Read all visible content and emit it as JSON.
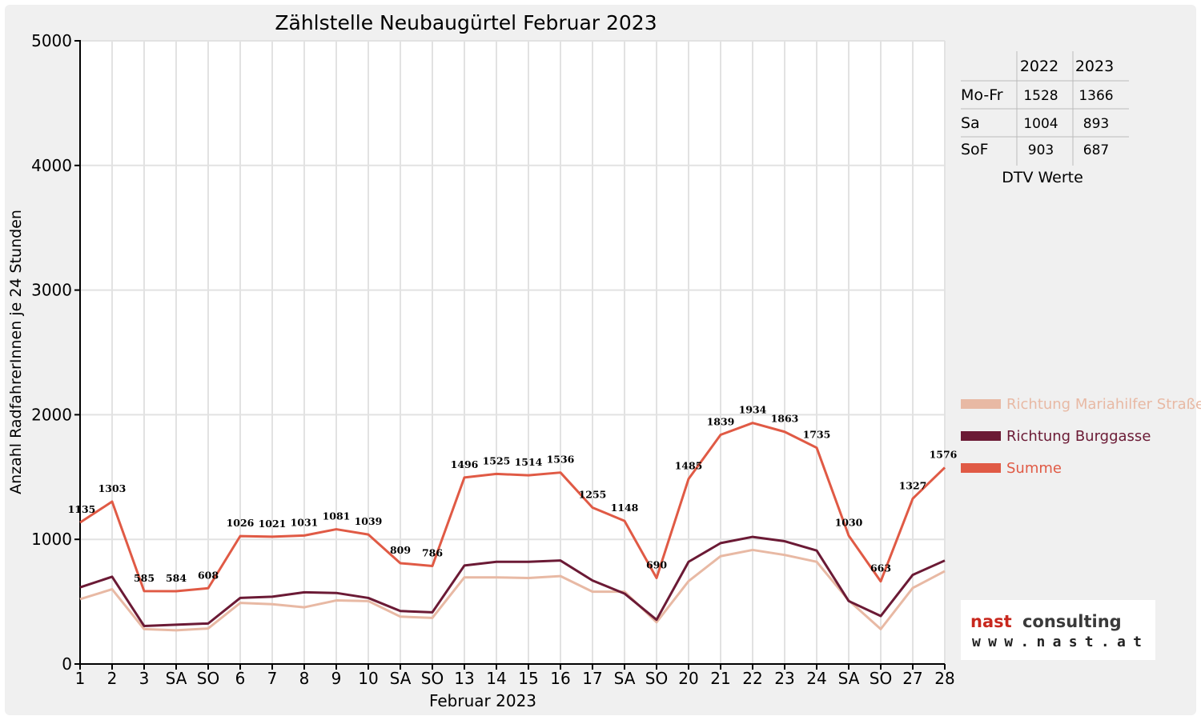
{
  "chart_data": {
    "type": "line",
    "title": "Zählstelle Neubaugürtel Februar 2023",
    "xlabel": "Februar 2023",
    "ylabel": "Anzahl RadfahrerInnen je 24 Stunden",
    "ylim": [
      0,
      5000
    ],
    "yticks": [
      "0",
      "1000",
      "2000",
      "3000",
      "4000",
      "5000"
    ],
    "grid": true,
    "legend_position": "right",
    "categories": [
      "1",
      "2",
      "3",
      "SA",
      "SO",
      "6",
      "7",
      "8",
      "9",
      "10",
      "SA",
      "SO",
      "13",
      "14",
      "15",
      "16",
      "17",
      "SA",
      "SO",
      "20",
      "21",
      "22",
      "23",
      "24",
      "SA",
      "SO",
      "27",
      "28"
    ],
    "weekend_categories": [
      "SO"
    ],
    "series": [
      {
        "name": "Richtung Mariahilfer Straße",
        "color": "#e8b9a4",
        "values": [
          520,
          600,
          280,
          270,
          285,
          490,
          480,
          455,
          510,
          505,
          380,
          370,
          695,
          695,
          690,
          705,
          580,
          580,
          335,
          665,
          865,
          915,
          875,
          820,
          510,
          280,
          610,
          745
        ]
      },
      {
        "name": "Richtung Burggasse",
        "color": "#6b1a35",
        "values": [
          615,
          700,
          305,
          315,
          325,
          530,
          540,
          575,
          570,
          530,
          425,
          415,
          790,
          820,
          820,
          830,
          670,
          565,
          355,
          820,
          970,
          1020,
          985,
          910,
          505,
          385,
          715,
          830
        ]
      },
      {
        "name": "Summe",
        "color": "#e05a45",
        "values": [
          1135,
          1303,
          585,
          584,
          608,
          1026,
          1021,
          1031,
          1081,
          1039,
          809,
          786,
          1496,
          1525,
          1514,
          1536,
          1255,
          1148,
          690,
          1485,
          1839,
          1934,
          1863,
          1735,
          1030,
          663,
          1327,
          1576
        ]
      }
    ],
    "data_labels": [
      "1135",
      "1303",
      "585",
      "584",
      "608",
      "1026",
      "1021",
      "1031",
      "1081",
      "1039",
      "809",
      "786",
      "1496",
      "1525",
      "1514",
      "1536",
      "1255",
      "1148",
      "690",
      "1485",
      "1839",
      "1934",
      "1863",
      "1735",
      "1030",
      "663",
      "1327",
      "1576"
    ]
  },
  "dtv_table": {
    "headers": [
      "2022",
      "2023"
    ],
    "rows": [
      {
        "label": "Mo-Fr",
        "v2022": "1528",
        "v2023": "1366"
      },
      {
        "label": "Sa",
        "v2022": "1004",
        "v2023": "893"
      },
      {
        "label": "SoF",
        "v2022": "903",
        "v2023": "687"
      }
    ],
    "caption": "DTV Werte"
  },
  "logo": {
    "word1": "nast",
    "word2": "consulting",
    "url": "www.nast.at",
    "word1_color": "#c8281e",
    "word2_color": "#3a3a3a"
  }
}
